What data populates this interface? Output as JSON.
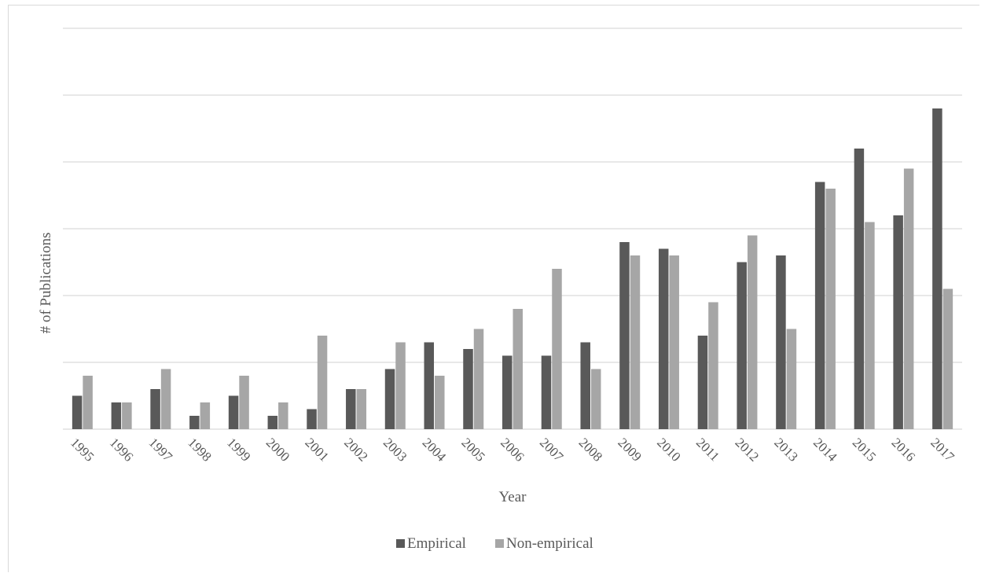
{
  "chart_data": {
    "type": "bar",
    "title": "",
    "xlabel": "Year",
    "ylabel": "# of Publications",
    "categories": [
      "1995",
      "1996",
      "1997",
      "1998",
      "1999",
      "2000",
      "2001",
      "2002",
      "2003",
      "2004",
      "2005",
      "2006",
      "2007",
      "2008",
      "2009",
      "2010",
      "2011",
      "2012",
      "2013",
      "2014",
      "2015",
      "2016",
      "2017"
    ],
    "series": [
      {
        "name": "Empirical",
        "color": "#595959",
        "values": [
          5,
          4,
          6,
          2,
          5,
          2,
          3,
          6,
          9,
          13,
          12,
          11,
          11,
          13,
          28,
          27,
          14,
          25,
          26,
          37,
          42,
          32,
          48
        ]
      },
      {
        "name": "Non-empirical",
        "color": "#a6a6a6",
        "values": [
          8,
          4,
          9,
          4,
          8,
          4,
          14,
          6,
          13,
          8,
          15,
          18,
          24,
          9,
          26,
          26,
          19,
          29,
          15,
          36,
          31,
          39,
          21
        ]
      }
    ],
    "ylim": [
      0,
      60
    ],
    "ytick_step": 10,
    "grid": true,
    "legend_position": "bottom-center"
  }
}
